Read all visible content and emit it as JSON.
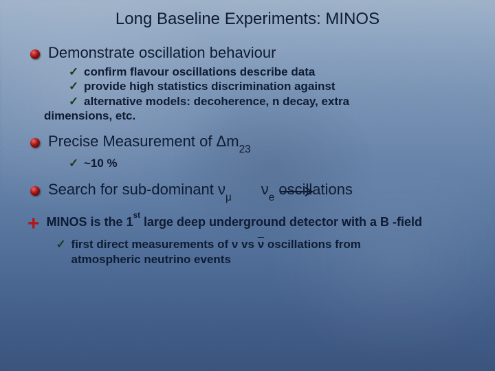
{
  "colors": {
    "text": "#0e1b33",
    "bullet_fill": "#a31313",
    "bullet_shadow": "#2b0404",
    "check": "#1a3a1a",
    "plus": "#b01717",
    "bg_top": "#9fb2c9",
    "bg_bottom": "#3a547d"
  },
  "fonts": {
    "title_size": 24,
    "main_size": 22,
    "sub_size": 17,
    "plus_text_size": 18,
    "plus_symbol_size": 30
  },
  "title": "Long Baseline Experiments: MINOS",
  "sections": [
    {
      "heading": "Demonstrate oscillation behaviour",
      "subs": [
        "confirm flavour oscillations describe data",
        "provide high statistics discrimination against",
        " alternative models: decoherence,  n decay, extra"
      ],
      "tail": "dimensions, etc."
    },
    {
      "heading_html": "Precise Measurement of Δm<sub>23</sub>",
      "subs": [
        "~10 %"
      ]
    },
    {
      "heading_html": "Search for sub-dominant ν<sub>μ</sub>       ν<sub>e</sub> oscillations",
      "arrow": true
    }
  ],
  "plus_block": {
    "text_html": "MINOS is  the 1<sup>st</sup> large deep underground detector with a B -field",
    "subs_html": [
      "first direct measurements of ν vs <span style='text-decoration:overline'>ν</span> oscillations from atmospheric neutrino events"
    ]
  }
}
